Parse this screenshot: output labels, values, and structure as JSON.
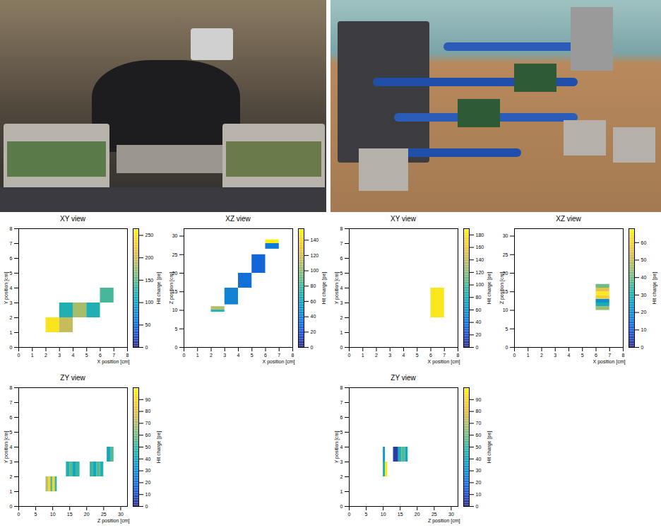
{
  "chart_data": [
    {
      "type": "heatmap",
      "title": "XY view",
      "x_label": "X position [cm]",
      "y_label": "Y position [cm]",
      "xlim": [
        0,
        8
      ],
      "xticks": [
        0,
        1,
        2,
        3,
        4,
        5,
        6,
        7,
        8
      ],
      "ylim": [
        0,
        8
      ],
      "yticks": [
        0,
        1,
        2,
        3,
        4,
        5,
        6,
        7,
        8
      ],
      "cells": [
        {
          "x0": 2,
          "x1": 3,
          "y0": 1,
          "y1": 2,
          "value": 250
        },
        {
          "x0": 3,
          "x1": 4,
          "y0": 1,
          "y1": 2,
          "value": 195
        },
        {
          "x0": 3,
          "x1": 4,
          "y0": 2,
          "y1": 3,
          "value": 120
        },
        {
          "x0": 4,
          "x1": 5,
          "y0": 2,
          "y1": 3,
          "value": 180
        },
        {
          "x0": 5,
          "x1": 6,
          "y0": 2,
          "y1": 3,
          "value": 120
        },
        {
          "x0": 6,
          "x1": 7,
          "y0": 3,
          "y1": 4,
          "value": 140
        }
      ],
      "colorbar": {
        "label": "Hit charge [pe]",
        "range": [
          0,
          265
        ],
        "ticks": [
          0,
          50,
          100,
          150,
          200,
          250
        ]
      }
    },
    {
      "type": "heatmap",
      "title": "XZ view",
      "x_label": "X position [cm]",
      "y_label": "Z position [cm]",
      "xlim": [
        0,
        8
      ],
      "xticks": [
        0,
        1,
        2,
        3,
        4,
        5,
        6,
        7,
        8
      ],
      "ylim": [
        0,
        32
      ],
      "yticks": [
        0,
        5,
        10,
        15,
        20,
        25,
        30
      ],
      "cells": [
        {
          "x0": 2,
          "x1": 3,
          "y0": 9.5,
          "y1": 10.2,
          "value": 75
        },
        {
          "x0": 2,
          "x1": 3,
          "y0": 10.2,
          "y1": 11,
          "value": 110
        },
        {
          "x0": 3,
          "x1": 4,
          "y0": 11.5,
          "y1": 16,
          "value": 40
        },
        {
          "x0": 4,
          "x1": 5,
          "y0": 16,
          "y1": 20,
          "value": 30
        },
        {
          "x0": 5,
          "x1": 6,
          "y0": 20,
          "y1": 25,
          "value": 25
        },
        {
          "x0": 6,
          "x1": 7,
          "y0": 26.5,
          "y1": 28,
          "value": 35
        },
        {
          "x0": 6,
          "x1": 7,
          "y0": 28,
          "y1": 29,
          "value": 150
        }
      ],
      "colorbar": {
        "label": "Hit charge [pe]",
        "range": [
          0,
          155
        ],
        "ticks": [
          0,
          20,
          40,
          60,
          80,
          100,
          120,
          140
        ]
      }
    },
    {
      "type": "heatmap",
      "title": "ZY view",
      "x_label": "Z position [cm]",
      "y_label": "Y position [cm]",
      "xlim": [
        0,
        32
      ],
      "xticks": [
        0,
        5,
        10,
        15,
        20,
        25,
        30
      ],
      "ylim": [
        0,
        8
      ],
      "yticks": [
        0,
        1,
        2,
        3,
        4,
        5,
        6,
        7,
        8
      ],
      "cells": [
        {
          "x0": 8,
          "x1": 8.7,
          "y0": 1,
          "y1": 2,
          "value": 70
        },
        {
          "x0": 8.7,
          "x1": 9.4,
          "y0": 1,
          "y1": 2,
          "value": 90
        },
        {
          "x0": 9.4,
          "x1": 10,
          "y0": 1,
          "y1": 2,
          "value": 55
        },
        {
          "x0": 10,
          "x1": 10.7,
          "y0": 1,
          "y1": 2,
          "value": 90
        },
        {
          "x0": 10.7,
          "x1": 11.3,
          "y0": 1,
          "y1": 2,
          "value": 50
        },
        {
          "x0": 14,
          "x1": 15,
          "y0": 2,
          "y1": 3,
          "value": 45
        },
        {
          "x0": 15,
          "x1": 16,
          "y0": 2,
          "y1": 3,
          "value": 55
        },
        {
          "x0": 16,
          "x1": 17,
          "y0": 2,
          "y1": 3,
          "value": 40
        },
        {
          "x0": 17,
          "x1": 18,
          "y0": 2,
          "y1": 3,
          "value": 50
        },
        {
          "x0": 21,
          "x1": 22,
          "y0": 2,
          "y1": 3,
          "value": 50
        },
        {
          "x0": 22,
          "x1": 23,
          "y0": 2,
          "y1": 3,
          "value": 40
        },
        {
          "x0": 23,
          "x1": 24,
          "y0": 2,
          "y1": 3,
          "value": 55
        },
        {
          "x0": 24,
          "x1": 25,
          "y0": 2,
          "y1": 3,
          "value": 45
        },
        {
          "x0": 26,
          "x1": 27,
          "y0": 3,
          "y1": 4,
          "value": 40
        },
        {
          "x0": 27,
          "x1": 28,
          "y0": 3,
          "y1": 4,
          "value": 55
        }
      ],
      "colorbar": {
        "label": "Hit charge [pe]",
        "range": [
          0,
          100
        ],
        "ticks": [
          0,
          10,
          20,
          30,
          40,
          50,
          60,
          70,
          80,
          90
        ]
      }
    },
    {
      "type": "heatmap",
      "title": "XY view",
      "x_label": "X position [cm]",
      "y_label": "Y position [cm]",
      "xlim": [
        0,
        8
      ],
      "xticks": [
        0,
        1,
        2,
        3,
        4,
        5,
        6,
        7,
        8
      ],
      "ylim": [
        0,
        8
      ],
      "yticks": [
        0,
        1,
        2,
        3,
        4,
        5,
        6,
        7,
        8
      ],
      "cells": [
        {
          "x0": 6,
          "x1": 7,
          "y0": 2,
          "y1": 3,
          "value": 180
        },
        {
          "x0": 6,
          "x1": 7,
          "y0": 3,
          "y1": 4,
          "value": 180
        }
      ],
      "colorbar": {
        "label": "Hit charge [pe]",
        "range": [
          0,
          190
        ],
        "ticks": [
          0,
          20,
          40,
          60,
          80,
          100,
          120,
          140,
          160,
          180
        ]
      }
    },
    {
      "type": "heatmap",
      "title": "XZ view",
      "x_label": "X position [cm]",
      "y_label": "Z position [cm]",
      "xlim": [
        0,
        8
      ],
      "xticks": [
        0,
        1,
        2,
        3,
        4,
        5,
        6,
        7,
        8
      ],
      "ylim": [
        0,
        32
      ],
      "yticks": [
        0,
        5,
        10,
        15,
        20,
        25,
        30
      ],
      "cells": [
        {
          "x0": 6,
          "x1": 7,
          "y0": 10,
          "y1": 11,
          "value": 45
        },
        {
          "x0": 6,
          "x1": 7,
          "y0": 11,
          "y1": 12,
          "value": 30
        },
        {
          "x0": 6,
          "x1": 7,
          "y0": 12,
          "y1": 13,
          "value": 20
        },
        {
          "x0": 6,
          "x1": 7,
          "y0": 13,
          "y1": 14,
          "value": 60
        },
        {
          "x0": 6,
          "x1": 7,
          "y0": 14,
          "y1": 15,
          "value": 65
        },
        {
          "x0": 6,
          "x1": 7,
          "y0": 15,
          "y1": 16,
          "value": 55
        },
        {
          "x0": 6,
          "x1": 7,
          "y0": 16,
          "y1": 17,
          "value": 40
        }
      ],
      "colorbar": {
        "label": "Hit charge [pe]",
        "range": [
          0,
          68
        ],
        "ticks": [
          0,
          10,
          20,
          30,
          40,
          50,
          60
        ]
      }
    },
    {
      "type": "heatmap",
      "title": "ZY view",
      "x_label": "Z position [cm]",
      "y_label": "Y position [cm]",
      "xlim": [
        0,
        32
      ],
      "xticks": [
        0,
        5,
        10,
        15,
        20,
        25,
        30
      ],
      "ylim": [
        0,
        8
      ],
      "yticks": [
        0,
        1,
        2,
        3,
        4,
        5,
        6,
        7,
        8
      ],
      "cells": [
        {
          "x0": 10,
          "x1": 10.6,
          "y0": 2,
          "y1": 3,
          "value": 45
        },
        {
          "x0": 10.6,
          "x1": 11.3,
          "y0": 2,
          "y1": 3,
          "value": 95
        },
        {
          "x0": 10,
          "x1": 10.6,
          "y0": 3,
          "y1": 4,
          "value": 35
        },
        {
          "x0": 13,
          "x1": 14.5,
          "y0": 3,
          "y1": 4,
          "value": 5
        },
        {
          "x0": 14.5,
          "x1": 15.5,
          "y0": 3,
          "y1": 4,
          "value": 45
        },
        {
          "x0": 15.5,
          "x1": 16.5,
          "y0": 3,
          "y1": 4,
          "value": 55
        },
        {
          "x0": 16.5,
          "x1": 17.3,
          "y0": 3,
          "y1": 4,
          "value": 40
        }
      ],
      "colorbar": {
        "label": "Hit charge [pe]",
        "range": [
          0,
          100
        ],
        "ticks": [
          0,
          10,
          20,
          30,
          40,
          50,
          60,
          70,
          80,
          90
        ]
      }
    }
  ]
}
